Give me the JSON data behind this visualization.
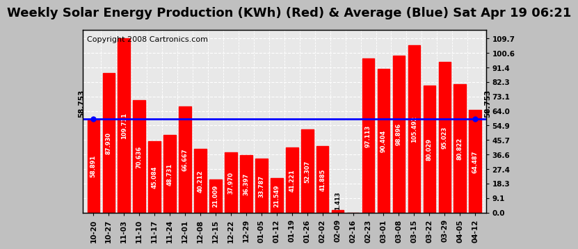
{
  "title": "Weekly Solar Energy Production (KWh) (Red) & Average (Blue) Sat Apr 19 06:21",
  "copyright": "Copyright 2008 Cartronics.com",
  "categories": [
    "10-20",
    "10-27",
    "11-03",
    "11-10",
    "11-17",
    "11-24",
    "12-01",
    "12-08",
    "12-15",
    "12-22",
    "12-29",
    "01-05",
    "01-12",
    "01-19",
    "01-26",
    "02-02",
    "02-09",
    "02-16",
    "02-23",
    "03-01",
    "03-08",
    "03-15",
    "03-22",
    "03-29",
    "04-05",
    "04-12"
  ],
  "values": [
    58.891,
    87.93,
    109.711,
    70.636,
    45.084,
    48.731,
    66.667,
    40.212,
    21.009,
    37.97,
    36.397,
    33.787,
    21.549,
    41.221,
    52.307,
    41.885,
    1.413,
    0.0,
    97.113,
    90.404,
    98.896,
    105.492,
    80.029,
    95.023,
    80.822,
    64.487
  ],
  "average": 58.753,
  "bar_color": "#ff0000",
  "avg_line_color": "#0000ff",
  "background_color": "#ffffff",
  "plot_bg_color": "#ffffff",
  "grid_color": "#ffffff",
  "yticks_right": [
    0.0,
    9.1,
    18.3,
    27.4,
    36.6,
    45.7,
    54.9,
    64.0,
    73.1,
    82.3,
    91.4,
    100.6,
    109.7
  ],
  "ylim": [
    0,
    115
  ],
  "title_fontsize": 13,
  "copyright_fontsize": 8,
  "bar_label_fontsize": 6,
  "tick_fontsize": 7.5,
  "avg_label": "58.753",
  "outer_bg": "#c0c0c0"
}
